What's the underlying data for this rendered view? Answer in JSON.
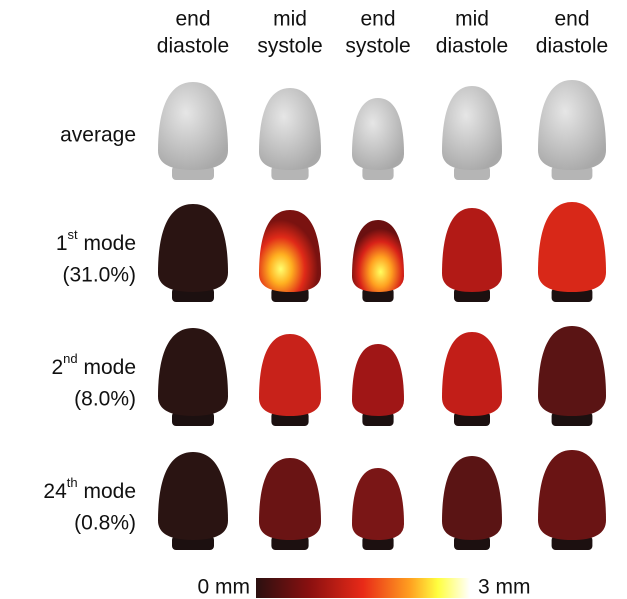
{
  "columns": [
    {
      "line1": "end",
      "line2": "diastole"
    },
    {
      "line1": "mid",
      "line2": "systole"
    },
    {
      "line1": "end",
      "line2": "systole"
    },
    {
      "line1": "mid",
      "line2": "diastole"
    },
    {
      "line1": "end",
      "line2": "diastole"
    }
  ],
  "rows": [
    {
      "label": "average"
    },
    {
      "ordinal": "1",
      "suffix": "st",
      "word": "mode",
      "percent": "(31.0%)"
    },
    {
      "ordinal": "2",
      "suffix": "nd",
      "word": "mode",
      "percent": "(8.0%)"
    },
    {
      "ordinal": "24",
      "suffix": "th",
      "word": "mode",
      "percent": "(0.8%)"
    }
  ],
  "colorbar": {
    "min_label": "0 mm",
    "max_label": "3 mm"
  }
}
